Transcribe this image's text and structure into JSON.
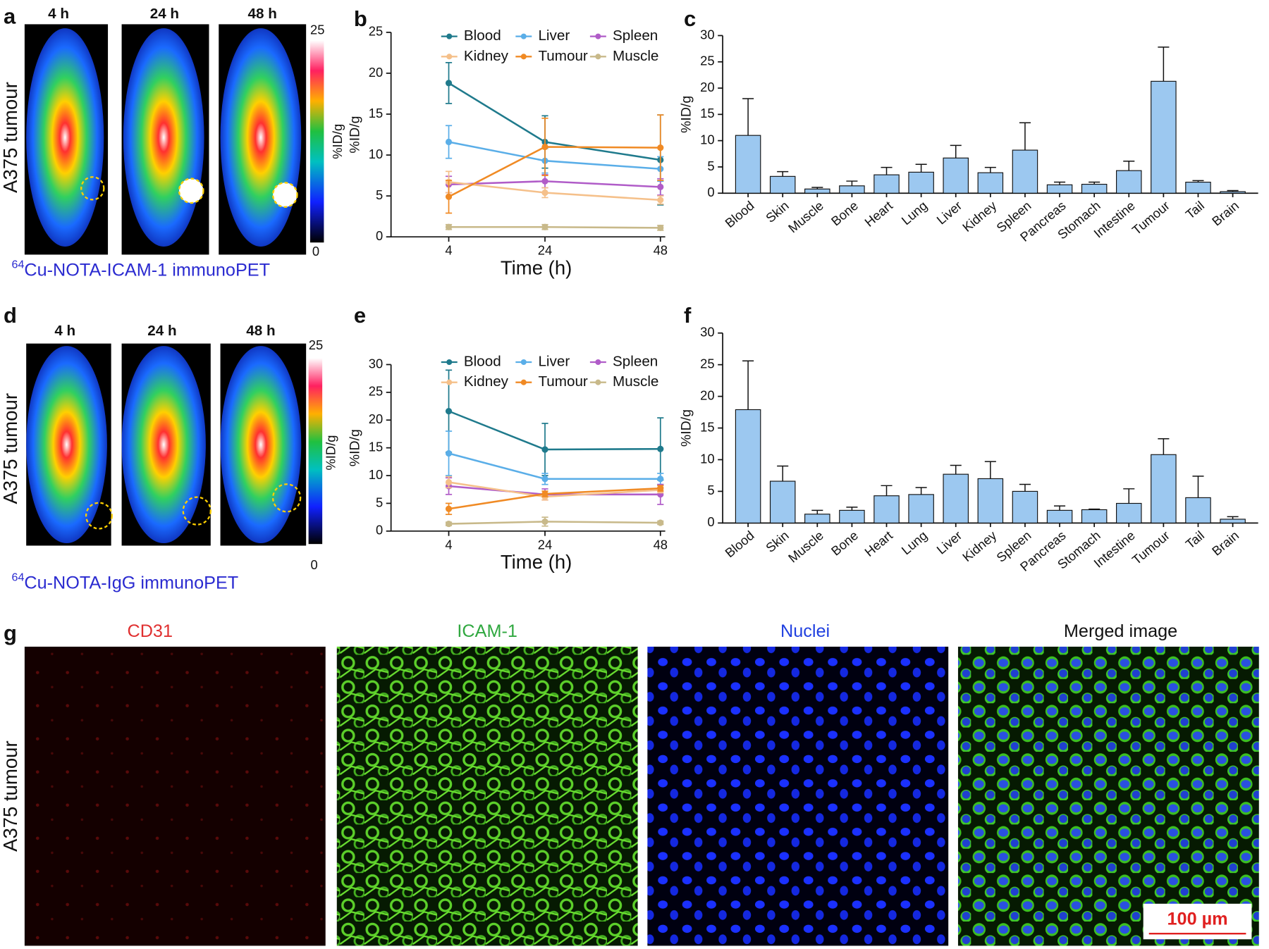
{
  "panel_a": {
    "label": "a",
    "times": [
      "4 h",
      "24 h",
      "48 h"
    ],
    "side_label": "A375 tumour",
    "colorbar": {
      "ticks": [
        0,
        25
      ],
      "label": "%ID/g"
    },
    "caption_sup": "64",
    "caption": "Cu-NOTA-ICAM-1 immunoPET"
  },
  "panel_d": {
    "label": "d",
    "times": [
      "4 h",
      "24 h",
      "48 h"
    ],
    "side_label": "A375 tumour",
    "colorbar": {
      "ticks": [
        0,
        25
      ],
      "label": "%ID/g"
    },
    "caption_sup": "64",
    "caption": "Cu-NOTA-IgG immunoPET"
  },
  "panel_g": {
    "label": "g",
    "channels": [
      "CD31",
      "ICAM-1",
      "Nuclei",
      "Merged image"
    ],
    "side_label": "A375 tumour",
    "scale_bar": "100 µm"
  },
  "chart_data": [
    {
      "type": "line",
      "panel": "b",
      "x_label": "Time (h)",
      "y_label": "%ID/g",
      "x": [
        4,
        24,
        48
      ],
      "xlim": [
        -8,
        49
      ],
      "xticks": [
        4,
        24,
        48
      ],
      "ylim": [
        0,
        25
      ],
      "yticks": [
        0,
        5,
        10,
        15,
        20,
        25
      ],
      "series": [
        {
          "name": "Blood",
          "color": "#1f7a8c",
          "values": [
            18.8,
            11.6,
            9.4
          ],
          "errors": [
            2.5,
            3.2,
            5.5
          ]
        },
        {
          "name": "Liver",
          "color": "#5aaee8",
          "values": [
            11.6,
            9.3,
            8.3
          ],
          "errors": [
            2.0,
            1.5,
            1.5
          ]
        },
        {
          "name": "Spleen",
          "color": "#b05cc8",
          "values": [
            6.4,
            6.8,
            6.1
          ],
          "errors": [
            1.0,
            0.8,
            1.0
          ]
        },
        {
          "name": "Kidney",
          "color": "#f5c08a",
          "values": [
            6.7,
            5.4,
            4.5
          ],
          "errors": [
            1.3,
            0.6,
            0.5
          ]
        },
        {
          "name": "Tumour",
          "color": "#f08a24",
          "values": [
            4.9,
            11.0,
            10.9
          ],
          "errors": [
            2.0,
            3.5,
            4.0
          ]
        },
        {
          "name": "Muscle",
          "color": "#c8b98a",
          "values": [
            1.2,
            1.2,
            1.1
          ],
          "errors": [
            0.3,
            0.3,
            0.3
          ]
        }
      ]
    },
    {
      "type": "bar",
      "panel": "c",
      "y_label": "%ID/g",
      "color": "#9cc8f0",
      "ylim": [
        0,
        30
      ],
      "yticks": [
        0,
        5,
        10,
        15,
        20,
        25,
        30
      ],
      "categories": [
        "Blood",
        "Skin",
        "Muscle",
        "Bone",
        "Heart",
        "Lung",
        "Liver",
        "Kidney",
        "Spleen",
        "Pancreas",
        "Stomach",
        "Intestine",
        "Tumour",
        "Tail",
        "Brain"
      ],
      "values": [
        11.0,
        3.2,
        0.8,
        1.4,
        3.5,
        4.0,
        6.7,
        3.9,
        8.2,
        1.6,
        1.7,
        4.3,
        21.3,
        2.1,
        0.3
      ],
      "errors": [
        7.0,
        0.9,
        0.3,
        0.9,
        1.4,
        1.5,
        2.4,
        1.0,
        5.2,
        0.5,
        0.4,
        1.8,
        6.5,
        0.3,
        0.2
      ]
    },
    {
      "type": "line",
      "panel": "e",
      "x_label": "Time (h)",
      "y_label": "%ID/g",
      "x": [
        4,
        24,
        48
      ],
      "xlim": [
        -8,
        49
      ],
      "xticks": [
        4,
        24,
        48
      ],
      "ylim": [
        0,
        30
      ],
      "yticks": [
        0,
        5,
        10,
        15,
        20,
        25,
        30
      ],
      "series": [
        {
          "name": "Blood",
          "color": "#1f7a8c",
          "values": [
            21.6,
            14.7,
            14.8
          ],
          "errors": [
            7.4,
            4.7,
            5.6
          ]
        },
        {
          "name": "Liver",
          "color": "#5aaee8",
          "values": [
            14.0,
            9.4,
            9.4
          ],
          "errors": [
            4.0,
            1.0,
            1.0
          ]
        },
        {
          "name": "Spleen",
          "color": "#b05cc8",
          "values": [
            8.1,
            6.6,
            6.6
          ],
          "errors": [
            1.5,
            1.0,
            1.8
          ]
        },
        {
          "name": "Kidney",
          "color": "#f5c08a",
          "values": [
            8.8,
            6.2,
            7.4
          ],
          "errors": [
            1.0,
            0.6,
            0.5
          ]
        },
        {
          "name": "Tumour",
          "color": "#f08a24",
          "values": [
            4.0,
            6.7,
            7.7
          ],
          "errors": [
            1.0,
            0.5,
            0.5
          ]
        },
        {
          "name": "Muscle",
          "color": "#c8b98a",
          "values": [
            1.3,
            1.7,
            1.5
          ],
          "errors": [
            0.3,
            0.8,
            0.3
          ]
        }
      ]
    },
    {
      "type": "bar",
      "panel": "f",
      "y_label": "%ID/g",
      "color": "#9cc8f0",
      "ylim": [
        0,
        30
      ],
      "yticks": [
        0,
        5,
        10,
        15,
        20,
        25,
        30
      ],
      "categories": [
        "Blood",
        "Skin",
        "Muscle",
        "Bone",
        "Heart",
        "Lung",
        "Liver",
        "Kidney",
        "Spleen",
        "Pancreas",
        "Stomach",
        "Intestine",
        "Tumour",
        "Tail",
        "Brain"
      ],
      "values": [
        17.9,
        6.6,
        1.4,
        2.0,
        4.3,
        4.5,
        7.7,
        7.0,
        5.0,
        2.0,
        2.1,
        3.1,
        10.8,
        4.0,
        0.6
      ],
      "errors": [
        7.7,
        2.4,
        0.6,
        0.5,
        1.6,
        1.1,
        1.4,
        2.7,
        1.1,
        0.7,
        0.1,
        2.3,
        2.5,
        3.4,
        0.4
      ]
    }
  ]
}
